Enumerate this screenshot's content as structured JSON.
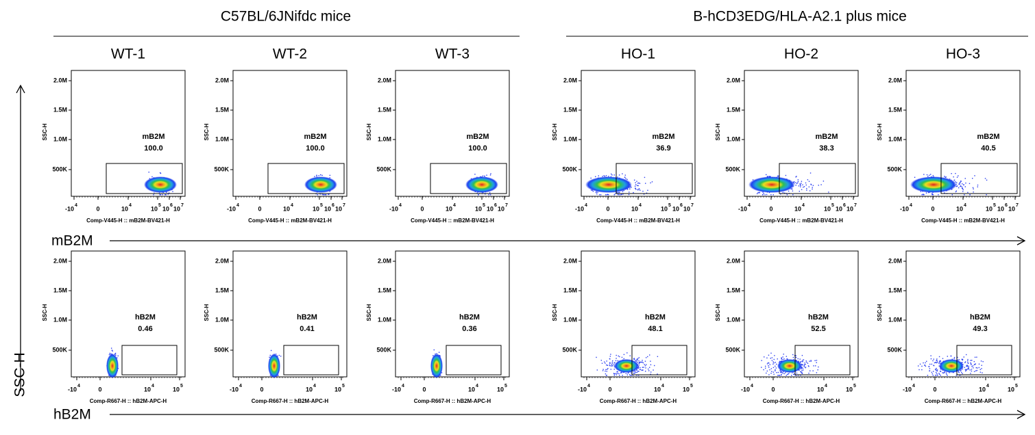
{
  "groups": [
    {
      "title": "C57BL/6JNifdc mice"
    },
    {
      "title": "B-hCD3EDG/HLA-A2.1 plus mice"
    }
  ],
  "columns": [
    "WT-1",
    "WT-2",
    "WT-3",
    "HO-1",
    "HO-2",
    "HO-3"
  ],
  "y_axis_title": "SSC-H",
  "plot_y_label": "SSC-H",
  "y_ticks": [
    "2.0M",
    "1.5M",
    "1.0M",
    "500K"
  ],
  "rows": [
    {
      "marker": "mB2M",
      "gate": "mB2M",
      "x_axis_label": "Comp-V445-H :: mB2M-BV421-H",
      "x_ticks": [
        {
          "base": "-10",
          "exp": "4"
        },
        {
          "base": "0"
        },
        {
          "base": "10",
          "exp": "4"
        },
        {
          "base": "10",
          "exp": "5"
        },
        {
          "base": "10",
          "exp": "6"
        },
        {
          "base": "10",
          "exp": "7"
        }
      ],
      "values": [
        "100.0",
        "100.0",
        "100.0",
        "36.9",
        "38.3",
        "40.5"
      ]
    },
    {
      "marker": "hB2M",
      "gate": "hB2M",
      "x_axis_label": "Comp-R667-H :: hB2M-APC-H",
      "x_ticks": [
        {
          "base": "-10",
          "exp": "4"
        },
        {
          "base": "0"
        },
        {
          "base": "10",
          "exp": "4"
        },
        {
          "base": "10",
          "exp": "5"
        }
      ],
      "values": [
        "0.46",
        "0.41",
        "0.36",
        "48.1",
        "52.5",
        "49.3"
      ]
    }
  ]
}
